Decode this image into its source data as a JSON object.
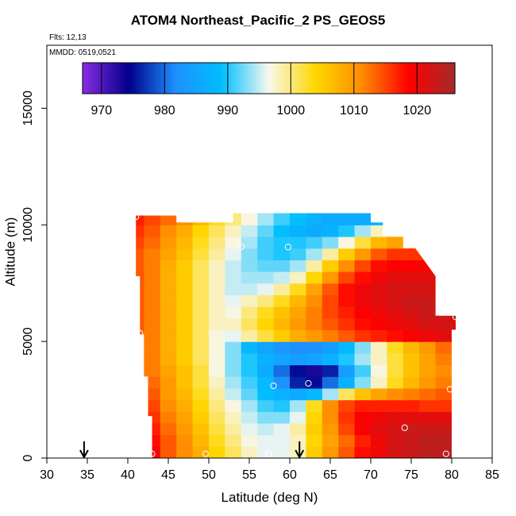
{
  "chart_data": {
    "type": "heatmap",
    "title": "ATOM4 Northeast_Pacific_2 PS_GEOS5",
    "annotations": {
      "flights": "Flts: 12,13",
      "dates": "MMDD: 0519,0521"
    },
    "xlabel": "Latitude (deg N)",
    "ylabel": "Altitude (m)",
    "xlim": [
      30,
      85
    ],
    "ylim": [
      0,
      17700
    ],
    "x_ticks": [
      30,
      35,
      40,
      45,
      50,
      55,
      60,
      65,
      70,
      75,
      80,
      85
    ],
    "y_ticks": [
      0,
      5000,
      10000,
      15000
    ],
    "grid": false,
    "colorbar": {
      "orientation": "horizontal",
      "placement": "top",
      "range": [
        967,
        1026
      ],
      "ticks": [
        970,
        980,
        990,
        1000,
        1010,
        1020
      ],
      "colors": [
        "#8a2be2",
        "#00008b",
        "#1e90ff",
        "#00bfff",
        "#f8f8f0",
        "#ffd700",
        "#ff8c00",
        "#ff0000",
        "#a52a2a"
      ]
    },
    "coverage": [
      [
        41.0,
        43.5,
        10400
      ],
      [
        46.0,
        10100
      ],
      [
        53.0,
        9700
      ],
      [
        56.0,
        10700
      ],
      [
        70.0,
        9500
      ],
      [
        72.0,
        8800
      ],
      [
        78.0,
        6100
      ],
      [
        79.5,
        0
      ],
      [
        80.0,
        6200
      ]
    ],
    "field": {
      "x": [
        41,
        43,
        45,
        47,
        49,
        51,
        53,
        55,
        57,
        59,
        61,
        63,
        65,
        67,
        69,
        71,
        73,
        75,
        77,
        79
      ],
      "y": [
        250,
        750,
        1250,
        1750,
        2250,
        2750,
        3250,
        3750,
        4250,
        4750,
        5250,
        5750,
        6250,
        6750,
        7250,
        7750,
        8250,
        8750,
        9250,
        9750,
        10250
      ],
      "z": [
        [
          1021,
          1019,
          1014,
          1011,
          1008,
          1004,
          1001,
          998,
          996,
          996,
          998,
          1005,
          1010,
          1014,
          1018,
          1020,
          1022,
          1023,
          1024,
          1024
        ],
        [
          1020,
          1018,
          1014,
          1011,
          1007,
          1003,
          1000,
          997,
          996,
          996,
          998,
          1004,
          1009,
          1013,
          1017,
          1020,
          1022,
          1023,
          1024,
          1024
        ],
        [
          1019,
          1017,
          1013,
          1010,
          1006,
          1002,
          999,
          996,
          995,
          996,
          999,
          1005,
          1010,
          1015,
          1019,
          1021,
          1022,
          1023,
          1023,
          1023
        ],
        [
          1018,
          1016,
          1012,
          1009,
          1005,
          1001,
          998,
          995,
          993,
          993,
          996,
          1004,
          1011,
          1016,
          1019,
          1020,
          1021,
          1021,
          1021,
          1021
        ],
        [
          1017,
          1015,
          1011,
          1008,
          1004,
          1000,
          997,
          994,
          991,
          990,
          994,
          1003,
          1011,
          1015,
          1017,
          1017,
          1017,
          1017,
          1016,
          1016
        ],
        [
          1016,
          1014,
          1010,
          1007,
          1003,
          999,
          995,
          992,
          989,
          987,
          986,
          988,
          994,
          1001,
          1006,
          1009,
          1011,
          1012,
          1013,
          1014
        ],
        [
          1015,
          1013,
          1010,
          1006,
          1002,
          998,
          994,
          991,
          988,
          982,
          976,
          975,
          980,
          987,
          993,
          998,
          1003,
          1007,
          1010,
          1012
        ],
        [
          1014,
          1012,
          1009,
          1006,
          1002,
          997,
          993,
          990,
          986,
          980,
          975,
          973,
          976,
          984,
          991,
          997,
          1002,
          1006,
          1009,
          1011
        ],
        [
          1014,
          1012,
          1008,
          1005,
          1001,
          997,
          993,
          990,
          987,
          985,
          984,
          985,
          987,
          990,
          994,
          998,
          1002,
          1006,
          1009,
          1012
        ],
        [
          1014,
          1012,
          1008,
          1005,
          1001,
          997,
          993,
          988,
          985,
          983,
          982,
          982,
          984,
          988,
          993,
          998,
          1003,
          1007,
          1010,
          1013
        ],
        [
          1014,
          1012,
          1008,
          1005,
          1001,
          997,
          996,
          999,
          1002,
          1005,
          1008,
          1010,
          1012,
          1014,
          1016,
          1017,
          1018,
          1019,
          1020,
          1021
        ],
        [
          1014,
          1012,
          1008,
          1005,
          1001,
          998,
          998,
          1001,
          1004,
          1007,
          1010,
          1012,
          1014,
          1016,
          1018,
          1019,
          1020,
          1021,
          1022,
          1022
        ],
        [
          1014,
          1012,
          1008,
          1005,
          1001,
          998,
          997,
          1000,
          1003,
          1006,
          1009,
          1012,
          1015,
          1017,
          1019,
          1020,
          1021,
          1022,
          1023,
          1023
        ],
        [
          1014,
          1012,
          1008,
          1005,
          1001,
          998,
          996,
          998,
          1000,
          1003,
          1007,
          1011,
          1015,
          1018,
          1020,
          1021,
          1022,
          1023,
          1023,
          1023
        ],
        [
          1014,
          1012,
          1008,
          1005,
          1001,
          998,
          995,
          995,
          996,
          999,
          1003,
          1009,
          1014,
          1018,
          1020,
          1021,
          1022,
          1022,
          1022,
          1022
        ],
        [
          1014,
          1012,
          1008,
          1005,
          1001,
          998,
          995,
          994,
          994,
          995,
          998,
          1004,
          1010,
          1015,
          1018,
          1020,
          1021,
          1021,
          1021,
          1021
        ],
        [
          1014,
          1012,
          1008,
          1005,
          1001,
          998,
          995,
          993,
          992,
          992,
          994,
          999,
          1005,
          1011,
          1015,
          1018,
          1019,
          1019,
          1019,
          1019
        ],
        [
          1014,
          1012,
          1009,
          1006,
          1002,
          999,
          996,
          993,
          991,
          990,
          991,
          994,
          999,
          1005,
          1010,
          1014,
          1016,
          1016,
          1016,
          1016
        ],
        [
          1015,
          1013,
          1010,
          1007,
          1003,
          1000,
          997,
          994,
          991,
          990,
          990,
          991,
          993,
          997,
          1002,
          1007,
          1009,
          1009,
          1009,
          1009
        ],
        [
          1016,
          1014,
          1011,
          1008,
          1004,
          1001,
          998,
          995,
          992,
          989,
          987,
          986,
          987,
          990,
          994,
          998,
          1000,
          1000,
          1000,
          1000
        ],
        [
          1017,
          1015,
          1013,
          1011,
          1007,
          1003,
          1000,
          997,
          994,
          991,
          989,
          987,
          986,
          986,
          986,
          988,
          988,
          988,
          988,
          988
        ]
      ]
    },
    "flight_points": [
      {
        "lat": 41.0,
        "alt": 10350
      },
      {
        "lat": 46.5,
        "alt": 10250
      },
      {
        "lat": 54.0,
        "alt": 9050
      },
      {
        "lat": 59.8,
        "alt": 9050
      },
      {
        "lat": 69.8,
        "alt": 10750
      },
      {
        "lat": 76.8,
        "alt": 8850
      },
      {
        "lat": 80.5,
        "alt": 6050
      },
      {
        "lat": 41.5,
        "alt": 5350
      },
      {
        "lat": 58.0,
        "alt": 3100
      },
      {
        "lat": 62.3,
        "alt": 3200
      },
      {
        "lat": 79.8,
        "alt": 2950
      },
      {
        "lat": 74.2,
        "alt": 1300
      },
      {
        "lat": 43.0,
        "alt": 180
      },
      {
        "lat": 49.6,
        "alt": 180
      },
      {
        "lat": 57.4,
        "alt": 180
      },
      {
        "lat": 79.3,
        "alt": 180
      }
    ],
    "arrows": [
      {
        "lat": 34.6
      },
      {
        "lat": 61.2
      }
    ]
  }
}
